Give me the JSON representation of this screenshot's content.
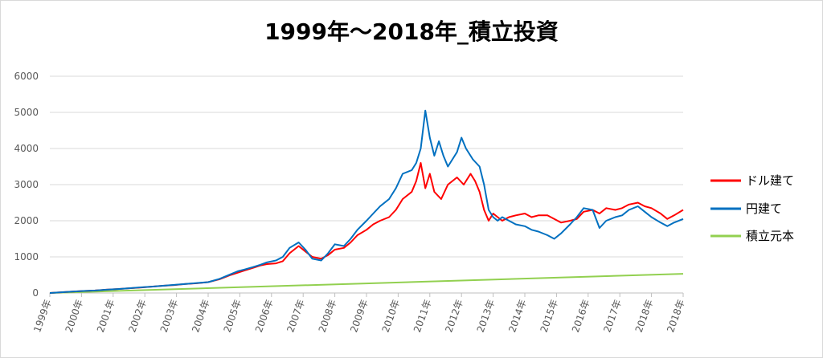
{
  "chart_data": {
    "type": "line",
    "title": "1999年～2018年_積立投資",
    "xlabel": "",
    "ylabel": "",
    "ylim": [
      0,
      6000
    ],
    "yticks": [
      0,
      1000,
      2000,
      3000,
      4000,
      5000,
      6000
    ],
    "x_tick_labels": [
      "1999年",
      "2000年",
      "2001年",
      "2002年",
      "2003年",
      "2004年",
      "2005年",
      "2006年",
      "2007年",
      "2008年",
      "2009年",
      "2010年",
      "2011年",
      "2012年",
      "2013年",
      "2014年",
      "2015年",
      "2016年",
      "2017年",
      "2018年",
      "2018年"
    ],
    "grid": "horizontal",
    "legend_position": "right",
    "series": [
      {
        "name": "ドル建て",
        "color": "#ff0000",
        "points": [
          [
            0,
            0
          ],
          [
            0.5,
            20
          ],
          [
            1,
            40
          ],
          [
            1.5,
            55
          ],
          [
            2,
            70
          ],
          [
            2.5,
            90
          ],
          [
            3,
            110
          ],
          [
            3.5,
            130
          ],
          [
            4,
            150
          ],
          [
            4.5,
            175
          ],
          [
            5,
            200
          ],
          [
            5.5,
            220
          ],
          [
            6,
            250
          ],
          [
            6.5,
            270
          ],
          [
            7,
            300
          ],
          [
            7.5,
            380
          ],
          [
            8,
            500
          ],
          [
            8.3,
            560
          ],
          [
            8.6,
            620
          ],
          [
            9,
            700
          ],
          [
            9.3,
            760
          ],
          [
            9.6,
            800
          ],
          [
            10,
            820
          ],
          [
            10.3,
            880
          ],
          [
            10.6,
            1100
          ],
          [
            11,
            1300
          ],
          [
            11.3,
            1150
          ],
          [
            11.6,
            1000
          ],
          [
            12,
            950
          ],
          [
            12.3,
            1050
          ],
          [
            12.6,
            1200
          ],
          [
            13,
            1250
          ],
          [
            13.3,
            1400
          ],
          [
            13.6,
            1600
          ],
          [
            14,
            1750
          ],
          [
            14.3,
            1900
          ],
          [
            14.6,
            2000
          ],
          [
            15,
            2100
          ],
          [
            15.3,
            2300
          ],
          [
            15.6,
            2600
          ],
          [
            16,
            2800
          ],
          [
            16.2,
            3100
          ],
          [
            16.4,
            3600
          ],
          [
            16.6,
            2900
          ],
          [
            16.8,
            3300
          ],
          [
            17,
            2800
          ],
          [
            17.3,
            2600
          ],
          [
            17.6,
            3000
          ],
          [
            18,
            3200
          ],
          [
            18.3,
            3000
          ],
          [
            18.6,
            3300
          ],
          [
            18.8,
            3100
          ],
          [
            19,
            2800
          ],
          [
            19.2,
            2300
          ],
          [
            19.4,
            2000
          ],
          [
            19.6,
            2200
          ],
          [
            19.8,
            2100
          ],
          [
            20,
            2000
          ],
          [
            20.3,
            2100
          ],
          [
            20.6,
            2150
          ],
          [
            21,
            2200
          ],
          [
            21.3,
            2100
          ],
          [
            21.6,
            2150
          ],
          [
            22,
            2150
          ],
          [
            22.3,
            2050
          ],
          [
            22.6,
            1950
          ],
          [
            23,
            2000
          ],
          [
            23.3,
            2050
          ],
          [
            23.6,
            2250
          ],
          [
            24,
            2300
          ],
          [
            24.3,
            2200
          ],
          [
            24.6,
            2350
          ],
          [
            25,
            2300
          ],
          [
            25.3,
            2350
          ],
          [
            25.6,
            2450
          ],
          [
            26,
            2500
          ],
          [
            26.3,
            2400
          ],
          [
            26.6,
            2350
          ],
          [
            27,
            2200
          ],
          [
            27.3,
            2050
          ],
          [
            27.6,
            2150
          ],
          [
            28,
            2300
          ]
        ]
      },
      {
        "name": "円建て",
        "color": "#0070c0",
        "points": [
          [
            0,
            0
          ],
          [
            0.5,
            20
          ],
          [
            1,
            40
          ],
          [
            1.5,
            55
          ],
          [
            2,
            70
          ],
          [
            2.5,
            90
          ],
          [
            3,
            110
          ],
          [
            3.5,
            130
          ],
          [
            4,
            155
          ],
          [
            4.5,
            175
          ],
          [
            5,
            200
          ],
          [
            5.5,
            225
          ],
          [
            6,
            250
          ],
          [
            6.5,
            275
          ],
          [
            7,
            300
          ],
          [
            7.5,
            390
          ],
          [
            8,
            520
          ],
          [
            8.3,
            600
          ],
          [
            8.6,
            650
          ],
          [
            9,
            720
          ],
          [
            9.3,
            780
          ],
          [
            9.6,
            850
          ],
          [
            10,
            900
          ],
          [
            10.3,
            1000
          ],
          [
            10.6,
            1250
          ],
          [
            11,
            1400
          ],
          [
            11.3,
            1200
          ],
          [
            11.6,
            950
          ],
          [
            12,
            900
          ],
          [
            12.3,
            1100
          ],
          [
            12.6,
            1350
          ],
          [
            13,
            1300
          ],
          [
            13.3,
            1500
          ],
          [
            13.6,
            1750
          ],
          [
            14,
            2000
          ],
          [
            14.3,
            2200
          ],
          [
            14.6,
            2400
          ],
          [
            15,
            2600
          ],
          [
            15.3,
            2900
          ],
          [
            15.6,
            3300
          ],
          [
            16,
            3400
          ],
          [
            16.2,
            3600
          ],
          [
            16.4,
            4000
          ],
          [
            16.6,
            5050
          ],
          [
            16.8,
            4300
          ],
          [
            17,
            3800
          ],
          [
            17.2,
            4200
          ],
          [
            17.4,
            3800
          ],
          [
            17.6,
            3500
          ],
          [
            18,
            3900
          ],
          [
            18.2,
            4300
          ],
          [
            18.4,
            4000
          ],
          [
            18.7,
            3700
          ],
          [
            19,
            3500
          ],
          [
            19.2,
            3000
          ],
          [
            19.4,
            2300
          ],
          [
            19.6,
            2100
          ],
          [
            19.8,
            2000
          ],
          [
            20,
            2100
          ],
          [
            20.3,
            2000
          ],
          [
            20.6,
            1900
          ],
          [
            21,
            1850
          ],
          [
            21.3,
            1750
          ],
          [
            21.6,
            1700
          ],
          [
            22,
            1600
          ],
          [
            22.3,
            1500
          ],
          [
            22.6,
            1650
          ],
          [
            23,
            1900
          ],
          [
            23.3,
            2100
          ],
          [
            23.6,
            2350
          ],
          [
            24,
            2300
          ],
          [
            24.3,
            1800
          ],
          [
            24.6,
            2000
          ],
          [
            25,
            2100
          ],
          [
            25.3,
            2150
          ],
          [
            25.6,
            2300
          ],
          [
            26,
            2400
          ],
          [
            26.3,
            2250
          ],
          [
            26.6,
            2100
          ],
          [
            27,
            1950
          ],
          [
            27.3,
            1850
          ],
          [
            27.6,
            1950
          ],
          [
            28,
            2050
          ]
        ]
      },
      {
        "name": "積立元本",
        "color": "#92d050",
        "points": [
          [
            0,
            0
          ],
          [
            28,
            530
          ]
        ]
      }
    ]
  }
}
